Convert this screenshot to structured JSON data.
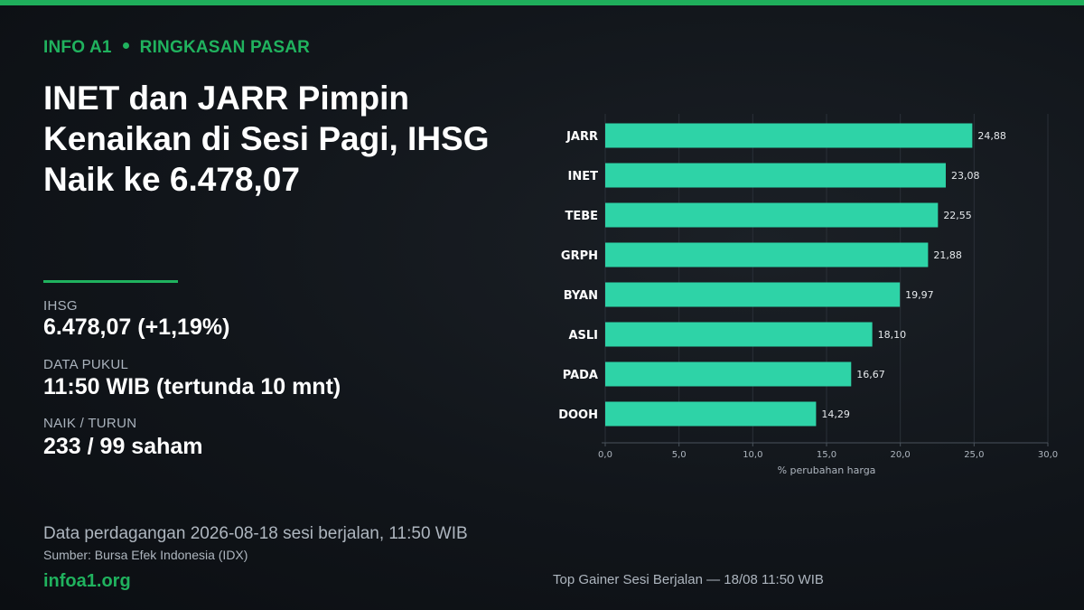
{
  "header": {
    "brand": "INFO A1",
    "section": "RINGKASAN PASAR",
    "headline": "INET dan JARR Pimpin Kenaikan di Sesi Pagi, IHSG Naik ke 6.478,07"
  },
  "stats": [
    {
      "label": "IHSG",
      "value": "6.478,07  (+1,19%)"
    },
    {
      "label": "DATA PUKUL",
      "value": "11:50 WIB (tertunda 10 mnt)"
    },
    {
      "label": "NAIK / TURUN",
      "value": "233 / 99 saham"
    }
  ],
  "footer": {
    "note": "Data perdagangan 2026-08-18 sesi berjalan, 11:50 WIB",
    "source": "Sumber: Bursa Efek Indonesia (IDX)",
    "site": "infoa1.org",
    "chart_caption": "Top Gainer Sesi Berjalan — 18/08 11:50 WIB"
  },
  "colors": {
    "accent": "#20b25e",
    "bar": "#2ed3a7",
    "background": "#11151a"
  },
  "chart_data": {
    "type": "bar",
    "orientation": "horizontal",
    "categories": [
      "JARR",
      "INET",
      "TEBE",
      "GRPH",
      "BYAN",
      "ASLI",
      "PADA",
      "DOOH"
    ],
    "values": [
      24.88,
      23.08,
      22.55,
      21.88,
      19.97,
      18.1,
      16.67,
      14.29
    ],
    "value_labels": [
      "24,88",
      "23,08",
      "22,55",
      "21,88",
      "19,97",
      "18,10",
      "16,67",
      "14,29"
    ],
    "xlabel": "% perubahan harga",
    "xlim": [
      0,
      30
    ],
    "xticks": [
      0,
      5,
      10,
      15,
      20,
      25,
      30
    ],
    "xtick_labels": [
      "0,0",
      "5,0",
      "10,0",
      "15,0",
      "20,0",
      "25,0",
      "30,0"
    ],
    "grid": "vertical",
    "legend": "none"
  }
}
